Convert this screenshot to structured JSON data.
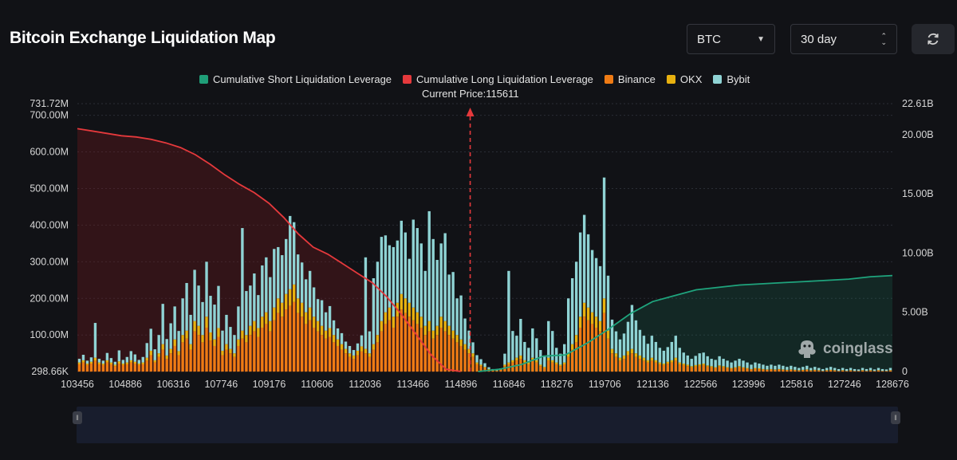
{
  "header": {
    "title": "Bitcoin Exchange Liquidation Map"
  },
  "controls": {
    "coin": "BTC",
    "range": "30 day",
    "refresh_icon": "refresh-icon"
  },
  "watermark": {
    "text": "coinglass",
    "icon": "coinglass-logo-icon"
  },
  "chart_data": {
    "type": "bar",
    "title": "Bitcoin Exchange Liquidation Map",
    "current_price_label": "Current Price:115611",
    "current_price": 115611,
    "x_range": [
      103456,
      128676
    ],
    "x_ticks": [
      "103456",
      "104886",
      "106316",
      "107746",
      "109176",
      "110606",
      "112036",
      "113466",
      "114896",
      "116846",
      "118276",
      "119706",
      "121136",
      "122566",
      "123996",
      "125816",
      "127246",
      "128676"
    ],
    "y_left_ticks": [
      "731.72M",
      "700.00M",
      "600.00M",
      "500.00M",
      "400.00M",
      "300.00M",
      "200.00M",
      "100.00M",
      "298.66K"
    ],
    "y_left_range": [
      298660,
      731720000
    ],
    "y_right_ticks": [
      "22.61B",
      "20.00B",
      "15.00B",
      "10.00B",
      "5.00B",
      "0"
    ],
    "y_right_range": [
      0,
      22610000000
    ],
    "legend": [
      {
        "name": "Cumulative Short Liquidation Leverage",
        "color": "#1f9e78"
      },
      {
        "name": "Cumulative Long Liquidation Leverage",
        "color": "#e5393c"
      },
      {
        "name": "Binance",
        "color": "#ef7b14"
      },
      {
        "name": "OKX",
        "color": "#e8b10f"
      },
      {
        "name": "Bybit",
        "color": "#8fd3d4"
      }
    ],
    "series": [
      {
        "name": "Binance",
        "values_M": [
          20,
          25,
          18,
          22,
          30,
          20,
          18,
          25,
          20,
          15,
          22,
          18,
          20,
          25,
          22,
          18,
          20,
          30,
          45,
          25,
          40,
          60,
          35,
          50,
          70,
          45,
          80,
          90,
          60,
          110,
          100,
          80,
          120,
          85,
          70,
          95,
          45,
          60,
          50,
          40,
          70,
          90,
          80,
          100,
          110,
          95,
          120,
          130,
          110,
          140,
          160,
          150,
          170,
          180,
          190,
          160,
          150,
          130,
          140,
          120,
          110,
          100,
          90,
          95,
          80,
          70,
          60,
          50,
          40,
          35,
          45,
          55,
          50,
          40,
          60,
          80,
          110,
          130,
          140,
          120,
          150,
          170,
          160,
          150,
          140,
          130,
          120,
          100,
          110,
          90,
          100,
          120,
          110,
          100,
          90,
          80,
          70,
          60,
          50,
          40,
          20,
          15,
          10,
          5,
          3,
          2,
          5,
          15,
          20,
          25,
          30,
          35,
          25,
          20,
          30,
          25,
          15,
          10,
          30,
          25,
          20,
          15,
          20,
          40,
          60,
          80,
          120,
          150,
          140,
          130,
          120,
          110,
          160,
          90,
          50,
          40,
          30,
          35,
          45,
          50,
          40,
          35,
          30,
          25,
          30,
          25,
          20,
          18,
          22,
          25,
          30,
          20,
          18,
          15,
          12,
          14,
          16,
          18,
          14,
          12,
          10,
          14,
          12,
          10,
          8,
          10,
          12,
          10,
          8,
          6,
          8,
          7,
          6,
          5,
          6,
          5,
          6,
          5,
          4,
          5,
          4,
          3,
          4,
          5,
          3,
          4,
          3,
          2,
          3,
          4,
          3,
          2,
          3,
          2,
          3,
          2,
          2,
          3,
          2,
          3,
          2,
          3,
          2,
          2,
          3
        ]
      },
      {
        "name": "OKX",
        "values_M": [
          5,
          6,
          4,
          5,
          8,
          5,
          4,
          6,
          5,
          4,
          6,
          4,
          5,
          6,
          5,
          4,
          5,
          8,
          12,
          6,
          10,
          15,
          9,
          12,
          18,
          11,
          20,
          22,
          15,
          28,
          25,
          20,
          30,
          22,
          18,
          24,
          12,
          15,
          12,
          10,
          18,
          22,
          20,
          25,
          28,
          24,
          30,
          32,
          28,
          35,
          40,
          38,
          42,
          45,
          48,
          40,
          38,
          32,
          35,
          30,
          28,
          25,
          22,
          24,
          20,
          18,
          15,
          12,
          10,
          9,
          12,
          14,
          12,
          10,
          15,
          20,
          28,
          32,
          35,
          30,
          38,
          42,
          40,
          38,
          35,
          32,
          30,
          25,
          28,
          22,
          25,
          30,
          28,
          25,
          22,
          20,
          18,
          15,
          12,
          10,
          5,
          4,
          3,
          2,
          1,
          1,
          1,
          4,
          5,
          6,
          8,
          9,
          6,
          5,
          8,
          6,
          4,
          3,
          8,
          6,
          5,
          4,
          5,
          10,
          15,
          20,
          30,
          38,
          35,
          32,
          30,
          28,
          40,
          22,
          12,
          10,
          8,
          9,
          11,
          12,
          10,
          9,
          8,
          6,
          8,
          6,
          5,
          4,
          5,
          6,
          8,
          5,
          4,
          4,
          3,
          4,
          4,
          4,
          3,
          3,
          2,
          3,
          3,
          2,
          2,
          2,
          3,
          2,
          2,
          1,
          2,
          2,
          1,
          1,
          1,
          1,
          1,
          1,
          1,
          1,
          1,
          1,
          1,
          1,
          1,
          1,
          1,
          0,
          1,
          1,
          1,
          0,
          1,
          0,
          1,
          0,
          0,
          1,
          0,
          1,
          0,
          1,
          0,
          0,
          1
        ]
      },
      {
        "name": "Bybit",
        "values_M": [
          10,
          15,
          8,
          12,
          95,
          10,
          8,
          20,
          12,
          8,
          30,
          10,
          15,
          25,
          20,
          10,
          15,
          40,
          60,
          30,
          50,
          110,
          45,
          70,
          90,
          55,
          100,
          130,
          80,
          140,
          110,
          90,
          150,
          100,
          95,
          115,
          55,
          80,
          60,
          50,
          90,
          280,
          120,
          110,
          130,
          90,
          140,
          150,
          120,
          160,
          140,
          130,
          150,
          200,
          170,
          120,
          110,
          90,
          100,
          80,
          60,
          70,
          50,
          60,
          40,
          30,
          30,
          20,
          20,
          15,
          20,
          30,
          250,
          60,
          180,
          200,
          230,
          210,
          170,
          190,
          170,
          200,
          180,
          120,
          240,
          230,
          200,
          150,
          300,
          250,
          180,
          200,
          240,
          140,
          160,
          100,
          120,
          70,
          50,
          30,
          20,
          15,
          10,
          5,
          3,
          2,
          3,
          30,
          250,
          80,
          60,
          100,
          50,
          40,
          80,
          60,
          40,
          30,
          100,
          80,
          40,
          30,
          50,
          150,
          180,
          200,
          230,
          240,
          200,
          170,
          160,
          150,
          330,
          150,
          80,
          60,
          50,
          60,
          80,
          120,
          90,
          70,
          60,
          45,
          60,
          50,
          40,
          35,
          40,
          50,
          60,
          40,
          30,
          25,
          20,
          25,
          30,
          30,
          25,
          20,
          20,
          25,
          20,
          18,
          15,
          18,
          20,
          18,
          15,
          12,
          15,
          13,
          12,
          10,
          12,
          10,
          12,
          10,
          8,
          10,
          8,
          6,
          8,
          10,
          6,
          8,
          6,
          5,
          6,
          8,
          6,
          5,
          6,
          5,
          6,
          5,
          4,
          6,
          5,
          6,
          4,
          6,
          5,
          4,
          6
        ]
      }
    ],
    "cumulative_long_B": [
      20.5,
      20.3,
      20.1,
      19.9,
      19.8,
      19.6,
      19.3,
      18.9,
      18.3,
      17.5,
      16.6,
      15.8,
      15.1,
      14.2,
      13.0,
      11.6,
      10.5,
      9.9,
      9.1,
      8.3,
      7.5,
      6.3,
      4.8,
      3.1,
      1.4,
      0.2,
      0
    ],
    "cumulative_short_B": [
      0,
      0.2,
      0.6,
      1.3,
      1.4,
      2.4,
      3.6,
      4.9,
      5.9,
      6.4,
      6.9,
      7.1,
      7.3,
      7.4,
      7.5,
      7.6,
      7.7,
      7.8,
      8.0,
      8.1
    ]
  }
}
